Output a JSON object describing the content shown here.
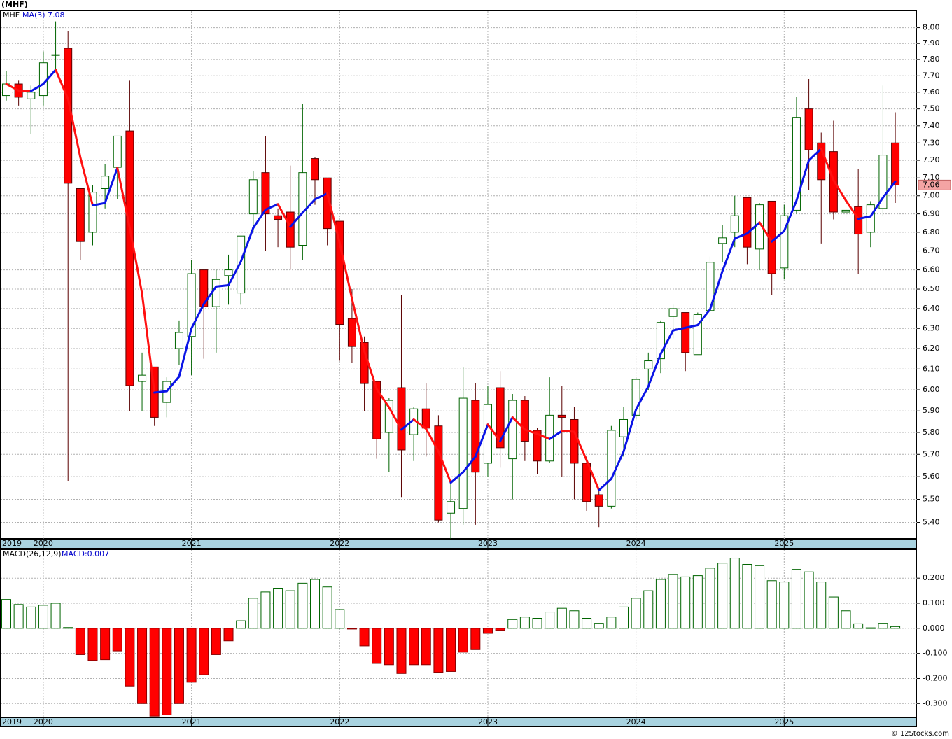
{
  "header": {
    "title": "(MHF)",
    "credit": "© 12Stocks.com"
  },
  "chart_data": [
    {
      "type": "candlestick",
      "legend_symbol": "MHF",
      "ma_name": "MA(3)",
      "ma_last": 7.08,
      "log_scale": true,
      "grid": true,
      "up_color": "#ffffff",
      "up_edge": "#006400",
      "down_color": "#ff0000",
      "down_edge": "#5a0000",
      "ma_up_color": "#0a14e6",
      "ma_down_color": "#ff1010",
      "last_box_color": "#f4a4a4",
      "categories": [
        "2019",
        null,
        null,
        "2020",
        null,
        null,
        null,
        null,
        null,
        null,
        null,
        null,
        null,
        null,
        null,
        "2021",
        null,
        null,
        null,
        null,
        null,
        null,
        null,
        null,
        null,
        null,
        null,
        "2022",
        null,
        null,
        null,
        null,
        null,
        null,
        null,
        null,
        null,
        null,
        null,
        "2023",
        null,
        null,
        null,
        null,
        null,
        null,
        null,
        null,
        null,
        null,
        null,
        "2024",
        null,
        null,
        null,
        null,
        null,
        null,
        null,
        null,
        null,
        null,
        null,
        "2025",
        null,
        null,
        null,
        null,
        null,
        null,
        null,
        null,
        null
      ],
      "open": [
        7.58,
        7.65,
        7.56,
        7.58,
        7.83,
        7.87,
        7.04,
        6.8,
        7.04,
        7.16,
        7.37,
        6.04,
        6.11,
        5.94,
        6.2,
        6.26,
        6.6,
        6.41,
        6.57,
        6.48,
        6.9,
        7.13,
        6.89,
        6.91,
        6.73,
        7.21,
        7.1,
        6.86,
        6.35,
        6.23,
        6.04,
        5.8,
        6.01,
        5.79,
        5.91,
        5.83,
        5.44,
        5.46,
        5.95,
        5.66,
        6.01,
        5.68,
        5.95,
        5.81,
        5.67,
        5.88,
        5.86,
        5.66,
        5.52,
        5.47,
        5.78,
        5.88,
        6.1,
        6.15,
        6.36,
        6.38,
        6.17,
        6.39,
        6.74,
        6.8,
        6.99,
        6.71,
        6.97,
        6.61,
        6.92,
        7.5,
        7.3,
        7.25,
        6.91,
        6.94,
        6.8,
        6.93,
        7.3
      ],
      "high": [
        7.73,
        7.67,
        7.64,
        7.85,
        8.04,
        7.98,
        7.04,
        7.06,
        7.18,
        7.34,
        7.67,
        6.18,
        6.11,
        6.06,
        6.34,
        6.65,
        6.6,
        6.6,
        6.68,
        6.78,
        7.14,
        7.34,
        6.93,
        7.17,
        7.53,
        7.22,
        7.1,
        6.86,
        6.5,
        6.26,
        6.04,
        5.96,
        6.47,
        5.92,
        6.03,
        5.88,
        5.58,
        6.11,
        6.03,
        6.02,
        6.09,
        5.98,
        5.97,
        5.82,
        6.06,
        6.02,
        5.92,
        5.69,
        5.54,
        5.83,
        5.92,
        6.06,
        6.18,
        6.34,
        6.42,
        6.38,
        6.38,
        6.67,
        6.84,
        7.0,
        6.99,
        6.96,
        6.97,
        6.95,
        7.57,
        7.68,
        7.36,
        7.43,
        6.93,
        7.15,
        6.97,
        7.64,
        7.48
      ],
      "low": [
        7.55,
        7.52,
        7.35,
        7.52,
        7.73,
        5.58,
        6.65,
        6.73,
        6.93,
        6.98,
        5.9,
        5.9,
        5.83,
        5.87,
        6.12,
        6.07,
        6.15,
        6.18,
        6.42,
        6.42,
        6.8,
        6.7,
        6.72,
        6.6,
        6.65,
        6.95,
        6.73,
        6.14,
        6.13,
        5.9,
        5.68,
        5.62,
        5.51,
        5.67,
        5.69,
        5.4,
        5.33,
        5.39,
        5.39,
        5.6,
        5.64,
        5.5,
        5.67,
        5.61,
        5.66,
        5.6,
        5.5,
        5.45,
        5.38,
        5.46,
        5.69,
        5.86,
        6.0,
        6.08,
        6.25,
        6.09,
        6.17,
        6.33,
        6.64,
        6.72,
        6.63,
        6.6,
        6.47,
        6.55,
        6.9,
        7.03,
        6.74,
        6.87,
        6.88,
        6.58,
        6.72,
        6.89,
        6.96
      ],
      "close": [
        7.65,
        7.57,
        7.6,
        7.78,
        7.83,
        7.07,
        6.75,
        7.02,
        7.11,
        7.34,
        6.02,
        6.07,
        5.87,
        6.04,
        6.28,
        6.58,
        6.41,
        6.55,
        6.6,
        6.78,
        7.09,
        6.9,
        6.87,
        6.72,
        7.13,
        7.09,
        6.82,
        6.32,
        6.21,
        6.03,
        5.77,
        5.95,
        5.72,
        5.91,
        5.82,
        5.41,
        5.49,
        5.96,
        5.62,
        5.93,
        5.73,
        5.95,
        5.76,
        5.67,
        5.88,
        5.87,
        5.66,
        5.49,
        5.47,
        5.81,
        5.86,
        6.05,
        6.14,
        6.33,
        6.4,
        6.18,
        6.37,
        6.64,
        6.77,
        6.89,
        6.72,
        6.95,
        6.58,
        6.89,
        7.45,
        7.26,
        7.09,
        6.91,
        6.92,
        6.79,
        6.95,
        7.23,
        7.06
      ],
      "ylim": [
        5.33,
        8.11
      ],
      "yticks": [
        {
          "value": 5.4,
          "label": "5.40"
        },
        {
          "value": 5.5,
          "label": "5.50"
        },
        {
          "value": 5.6,
          "label": "5.60"
        },
        {
          "value": 5.7,
          "label": "5.70"
        },
        {
          "value": 5.8,
          "label": "5.80"
        },
        {
          "value": 5.9,
          "label": "5.90"
        },
        {
          "value": 6.0,
          "label": "6.00"
        },
        {
          "value": 6.1,
          "label": "6.10"
        },
        {
          "value": 6.2,
          "label": "6.20"
        },
        {
          "value": 6.3,
          "label": "6.30"
        },
        {
          "value": 6.4,
          "label": "6.40"
        },
        {
          "value": 6.5,
          "label": "6.50"
        },
        {
          "value": 6.6,
          "label": "6.60"
        },
        {
          "value": 6.7,
          "label": "6.70"
        },
        {
          "value": 6.8,
          "label": "6.80"
        },
        {
          "value": 6.9,
          "label": "6.90"
        },
        {
          "value": 7.0,
          "label": "7.00"
        },
        {
          "value": 7.1,
          "label": "7.10"
        },
        {
          "value": 7.2,
          "label": "7.20"
        },
        {
          "value": 7.3,
          "label": "7.30"
        },
        {
          "value": 7.4,
          "label": "7.40"
        },
        {
          "value": 7.5,
          "label": "7.50"
        },
        {
          "value": 7.6,
          "label": "7.60"
        },
        {
          "value": 7.7,
          "label": "7.70"
        },
        {
          "value": 7.8,
          "label": "7.80"
        },
        {
          "value": 7.9,
          "label": "7.90"
        },
        {
          "value": 8.0,
          "label": "8.00"
        }
      ]
    },
    {
      "type": "histogram_bar",
      "name": "MACD(26,12,9)",
      "value_label": "MACD:0.007",
      "pos_color": "#ffffff",
      "pos_edge": "#006400",
      "neg_color": "#ff0000",
      "neg_edge": "#8b0000",
      "grid": true,
      "categories": [
        "2019",
        null,
        null,
        "2020",
        null,
        null,
        null,
        null,
        null,
        null,
        null,
        null,
        null,
        null,
        null,
        "2021",
        null,
        null,
        null,
        null,
        null,
        null,
        null,
        null,
        null,
        null,
        null,
        "2022",
        null,
        null,
        null,
        null,
        null,
        null,
        null,
        null,
        null,
        null,
        null,
        "2023",
        null,
        null,
        null,
        null,
        null,
        null,
        null,
        null,
        null,
        null,
        null,
        "2024",
        null,
        null,
        null,
        null,
        null,
        null,
        null,
        null,
        null,
        null,
        null,
        "2025",
        null,
        null,
        null,
        null,
        null,
        null,
        null,
        null,
        null
      ],
      "values": [
        0.115,
        0.095,
        0.085,
        0.092,
        0.1,
        0.003,
        -0.105,
        -0.128,
        -0.125,
        -0.09,
        -0.23,
        -0.3,
        -0.35,
        -0.345,
        -0.3,
        -0.215,
        -0.185,
        -0.105,
        -0.05,
        0.03,
        0.12,
        0.145,
        0.16,
        0.15,
        0.18,
        0.195,
        0.165,
        0.075,
        -0.003,
        -0.07,
        -0.14,
        -0.145,
        -0.18,
        -0.145,
        -0.145,
        -0.175,
        -0.172,
        -0.095,
        -0.085,
        -0.02,
        -0.008,
        0.035,
        0.045,
        0.04,
        0.065,
        0.08,
        0.07,
        0.04,
        0.02,
        0.045,
        0.085,
        0.12,
        0.15,
        0.195,
        0.215,
        0.205,
        0.21,
        0.24,
        0.26,
        0.28,
        0.255,
        0.25,
        0.19,
        0.185,
        0.235,
        0.225,
        0.185,
        0.125,
        0.07,
        0.018,
        0.002,
        0.02,
        0.007
      ],
      "ylim": [
        -0.355,
        0.315
      ],
      "yticks": [
        {
          "value": 0.2,
          "label": "0.200"
        },
        {
          "value": 0.1,
          "label": "0.100"
        },
        {
          "value": 0,
          "label": "0.000"
        },
        {
          "value": -0.1,
          "label": "-0.100"
        },
        {
          "value": -0.2,
          "label": "-0.200"
        },
        {
          "value": -0.3,
          "label": "-0.300"
        }
      ]
    }
  ]
}
